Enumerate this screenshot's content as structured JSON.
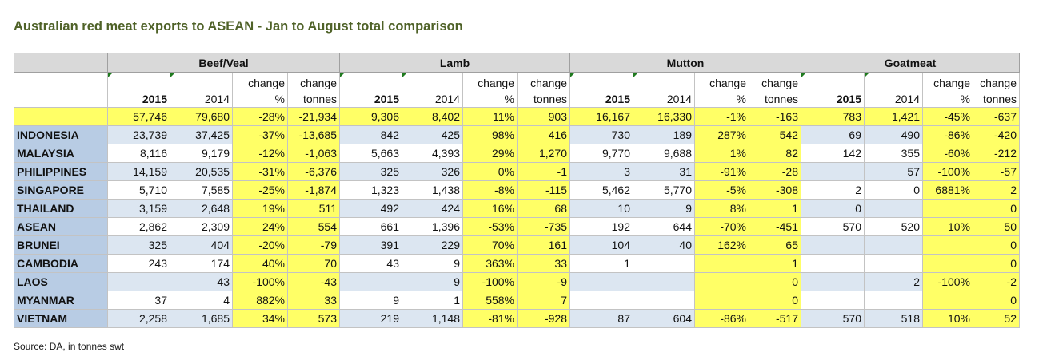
{
  "title": "Australian red meat exports to ASEAN - Jan to August total comparison",
  "source": "Source: DA, in tonnes swt",
  "chart_data": {
    "type": "table",
    "groups": [
      "Beef/Veal",
      "Lamb",
      "Mutton",
      "Goatmeat"
    ],
    "subheaders": [
      "2015",
      "2014",
      "change %",
      "change tonnes"
    ],
    "total": [
      "57,746",
      "79,680",
      "-28%",
      "-21,934",
      "9,306",
      "8,402",
      "11%",
      "903",
      "16,167",
      "16,330",
      "-1%",
      "-163",
      "783",
      "1,421",
      "-45%",
      "-637"
    ],
    "rows": [
      {
        "label": "INDONESIA",
        "cells": [
          "23,739",
          "37,425",
          "-37%",
          "-13,685",
          "842",
          "425",
          "98%",
          "416",
          "730",
          "189",
          "287%",
          "542",
          "69",
          "490",
          "-86%",
          "-420"
        ]
      },
      {
        "label": "MALAYSIA",
        "cells": [
          "8,116",
          "9,179",
          "-12%",
          "-1,063",
          "5,663",
          "4,393",
          "29%",
          "1,270",
          "9,770",
          "9,688",
          "1%",
          "82",
          "142",
          "355",
          "-60%",
          "-212"
        ]
      },
      {
        "label": "PHILIPPINES",
        "cells": [
          "14,159",
          "20,535",
          "-31%",
          "-6,376",
          "325",
          "326",
          "0%",
          "-1",
          "3",
          "31",
          "-91%",
          "-28",
          "",
          "57",
          "-100%",
          "-57"
        ]
      },
      {
        "label": "SINGAPORE",
        "cells": [
          "5,710",
          "7,585",
          "-25%",
          "-1,874",
          "1,323",
          "1,438",
          "-8%",
          "-115",
          "5,462",
          "5,770",
          "-5%",
          "-308",
          "2",
          "0",
          "6881%",
          "2"
        ]
      },
      {
        "label": "THAILAND",
        "cells": [
          "3,159",
          "2,648",
          "19%",
          "511",
          "492",
          "424",
          "16%",
          "68",
          "10",
          "9",
          "8%",
          "1",
          "0",
          "",
          "",
          "0"
        ]
      },
      {
        "label": "ASEAN",
        "cells": [
          "2,862",
          "2,309",
          "24%",
          "554",
          "661",
          "1,396",
          "-53%",
          "-735",
          "192",
          "644",
          "-70%",
          "-451",
          "570",
          "520",
          "10%",
          "50"
        ]
      },
      {
        "label": "BRUNEI",
        "cells": [
          "325",
          "404",
          "-20%",
          "-79",
          "391",
          "229",
          "70%",
          "161",
          "104",
          "40",
          "162%",
          "65",
          "",
          "",
          "",
          "0"
        ]
      },
      {
        "label": "CAMBODIA",
        "cells": [
          "243",
          "174",
          "40%",
          "70",
          "43",
          "9",
          "363%",
          "33",
          "1",
          "",
          "",
          "1",
          "",
          "",
          "",
          "0"
        ]
      },
      {
        "label": "LAOS",
        "cells": [
          "",
          "43",
          "-100%",
          "-43",
          "",
          "9",
          "-100%",
          "-9",
          "",
          "",
          "",
          "0",
          "",
          "2",
          "-100%",
          "-2"
        ]
      },
      {
        "label": "MYANMAR",
        "cells": [
          "37",
          "4",
          "882%",
          "33",
          "9",
          "1",
          "558%",
          "7",
          "",
          "",
          "",
          "0",
          "",
          "",
          "",
          "0"
        ]
      },
      {
        "label": "VIETNAM",
        "cells": [
          "2,258",
          "1,685",
          "34%",
          "573",
          "219",
          "1,148",
          "-81%",
          "-928",
          "87",
          "604",
          "-86%",
          "-517",
          "570",
          "518",
          "10%",
          "52"
        ]
      }
    ]
  }
}
